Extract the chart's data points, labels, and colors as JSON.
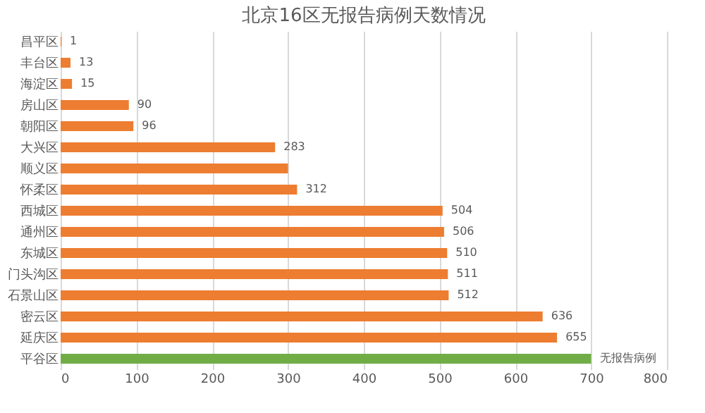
{
  "chart_data": {
    "type": "bar",
    "orientation": "horizontal",
    "title": "北京16区无报告病例天数情况",
    "categories": [
      "昌平区",
      "丰台区",
      "海淀区",
      "房山区",
      "朝阳区",
      "大兴区",
      "顺义区",
      "怀柔区",
      "西城区",
      "通州区",
      "东城区",
      "门头沟区",
      "石景山区",
      "密云区",
      "延庆区",
      "平谷区"
    ],
    "values": [
      1,
      13,
      15,
      90,
      96,
      283,
      300,
      312,
      504,
      506,
      510,
      511,
      512,
      636,
      655,
      700
    ],
    "colors": [
      "#ed7d31",
      "#ed7d31",
      "#ed7d31",
      "#ed7d31",
      "#ed7d31",
      "#ed7d31",
      "#ed7d31",
      "#ed7d31",
      "#ed7d31",
      "#ed7d31",
      "#ed7d31",
      "#ed7d31",
      "#ed7d31",
      "#ed7d31",
      "#ed7d31",
      "#70ad47"
    ],
    "value_labels": [
      "1",
      "13",
      "15",
      "90",
      "96",
      "283",
      null,
      "312",
      "504",
      "506",
      "510",
      "511",
      "512",
      "636",
      "655",
      "无报告病例"
    ],
    "xlim": [
      0,
      800
    ],
    "xticks": [
      0,
      100,
      200,
      300,
      400,
      500,
      600,
      700,
      800
    ],
    "grid": "x"
  }
}
